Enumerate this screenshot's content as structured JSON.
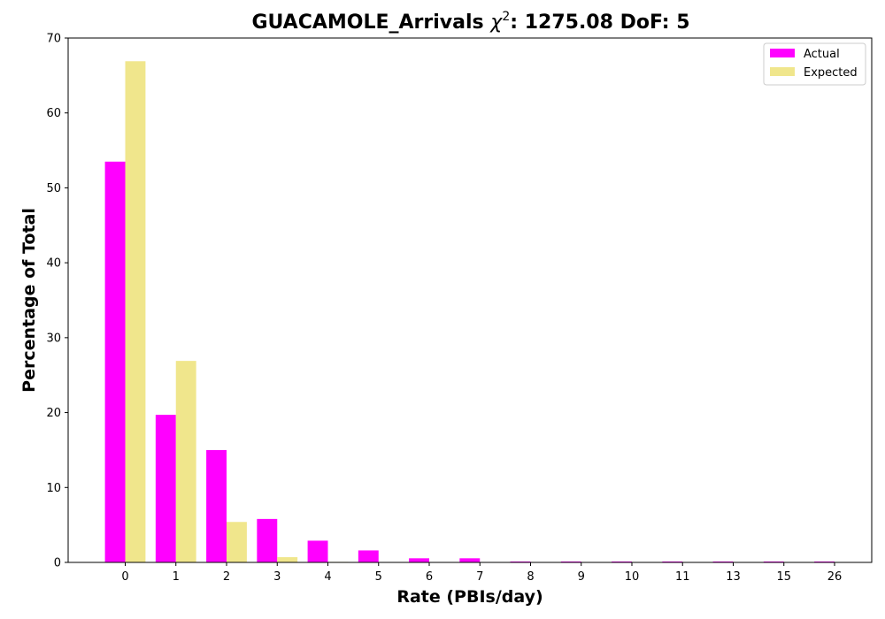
{
  "chart_data": {
    "type": "bar",
    "title": "GUACAMOLE_Arrivals",
    "title_stat": {
      "symbol": "χ",
      "exponent": "2",
      "rest": ": 1275.08 DoF: 5"
    },
    "xlabel": "Rate (PBIs/day)",
    "ylabel": "Percentage of Total",
    "categories": [
      "0",
      "1",
      "2",
      "3",
      "4",
      "5",
      "6",
      "7",
      "8",
      "9",
      "10",
      "11",
      "13",
      "15",
      "26"
    ],
    "ylim": [
      0,
      70
    ],
    "yticks": [
      0,
      10,
      20,
      30,
      40,
      50,
      60,
      70
    ],
    "grid": false,
    "legend_position": "top-right",
    "series": [
      {
        "name": "Actual",
        "color": "#ff00ff",
        "values": [
          53.5,
          19.7,
          15.0,
          5.8,
          2.9,
          1.6,
          0.55,
          0.55,
          0.12,
          0.12,
          0.12,
          0.12,
          0.12,
          0.12,
          0.12
        ]
      },
      {
        "name": "Expected",
        "color": "#f0e68c",
        "values": [
          66.9,
          26.9,
          5.4,
          0.7,
          0.07,
          0.006,
          0,
          0,
          0,
          0,
          0,
          0,
          0,
          0,
          0
        ]
      }
    ]
  }
}
